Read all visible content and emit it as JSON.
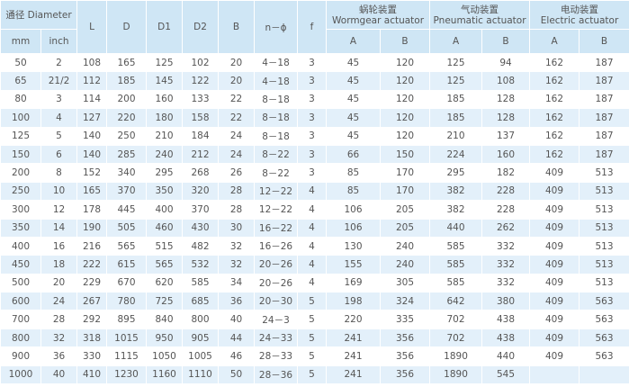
{
  "table": {
    "header": {
      "diameter": "通径 Diameter",
      "mm": "mm",
      "inch": "inch",
      "columns": [
        "L",
        "D",
        "D1",
        "D2",
        "B",
        "n－ϕ",
        "f"
      ],
      "groups": [
        {
          "zh": "蜗轮装置",
          "en": "Wormgear actuator",
          "sub": [
            "A",
            "B"
          ]
        },
        {
          "zh": "气动装置",
          "en": "Pneumatic actuator",
          "sub": [
            "A",
            "B"
          ]
        },
        {
          "zh": "电动装置",
          "en": "Electric actuator",
          "sub": [
            "A",
            "B"
          ]
        }
      ]
    },
    "rows": [
      [
        "50",
        "2",
        "108",
        "165",
        "125",
        "102",
        "20",
        "4－18",
        "3",
        "45",
        "120",
        "125",
        "94",
        "162",
        "187"
      ],
      [
        "65",
        "21/2",
        "112",
        "185",
        "145",
        "122",
        "20",
        "4－18",
        "3",
        "45",
        "120",
        "125",
        "108",
        "162",
        "187"
      ],
      [
        "80",
        "3",
        "114",
        "200",
        "160",
        "133",
        "22",
        "8－18",
        "3",
        "45",
        "120",
        "185",
        "128",
        "162",
        "187"
      ],
      [
        "100",
        "4",
        "127",
        "220",
        "180",
        "158",
        "22",
        "8－18",
        "3",
        "45",
        "120",
        "185",
        "128",
        "162",
        "187"
      ],
      [
        "125",
        "5",
        "140",
        "250",
        "210",
        "184",
        "24",
        "8－18",
        "3",
        "45",
        "120",
        "210",
        "137",
        "162",
        "187"
      ],
      [
        "150",
        "6",
        "140",
        "285",
        "240",
        "212",
        "24",
        "8－22",
        "3",
        "66",
        "150",
        "224",
        "160",
        "162",
        "187"
      ],
      [
        "200",
        "8",
        "152",
        "340",
        "295",
        "268",
        "26",
        "8－22",
        "3",
        "85",
        "170",
        "295",
        "182",
        "409",
        "513"
      ],
      [
        "250",
        "10",
        "165",
        "370",
        "350",
        "320",
        "28",
        "12－22",
        "4",
        "85",
        "170",
        "382",
        "228",
        "409",
        "513"
      ],
      [
        "300",
        "12",
        "178",
        "445",
        "400",
        "370",
        "28",
        "12－22",
        "4",
        "106",
        "205",
        "382",
        "228",
        "409",
        "513"
      ],
      [
        "350",
        "14",
        "190",
        "505",
        "460",
        "430",
        "30",
        "16－22",
        "4",
        "106",
        "205",
        "440",
        "262",
        "409",
        "513"
      ],
      [
        "400",
        "16",
        "216",
        "565",
        "515",
        "482",
        "32",
        "16－26",
        "4",
        "130",
        "240",
        "585",
        "332",
        "409",
        "513"
      ],
      [
        "450",
        "18",
        "222",
        "615",
        "565",
        "532",
        "32",
        "20－26",
        "4",
        "155",
        "240",
        "585",
        "332",
        "409",
        "513"
      ],
      [
        "500",
        "20",
        "229",
        "670",
        "620",
        "585",
        "34",
        "20－26",
        "4",
        "169",
        "305",
        "585",
        "332",
        "409",
        "513"
      ],
      [
        "600",
        "24",
        "267",
        "780",
        "725",
        "685",
        "36",
        "20－30",
        "5",
        "198",
        "324",
        "642",
        "380",
        "409",
        "563"
      ],
      [
        "700",
        "28",
        "292",
        "895",
        "840",
        "800",
        "40",
        "24－3",
        "5",
        "220",
        "335",
        "702",
        "438",
        "409",
        "563"
      ],
      [
        "800",
        "32",
        "318",
        "1015",
        "950",
        "905",
        "44",
        "24－33",
        "5",
        "241",
        "356",
        "702",
        "438",
        "409",
        "563"
      ],
      [
        "900",
        "36",
        "330",
        "1115",
        "1050",
        "1005",
        "46",
        "28－33",
        "5",
        "241",
        "356",
        "1890",
        "440",
        "409",
        "563"
      ],
      [
        "1000",
        "40",
        "410",
        "1230",
        "1160",
        "1110",
        "50",
        "28－36",
        "5",
        "241",
        "356",
        "1890",
        "545"
      ]
    ]
  }
}
